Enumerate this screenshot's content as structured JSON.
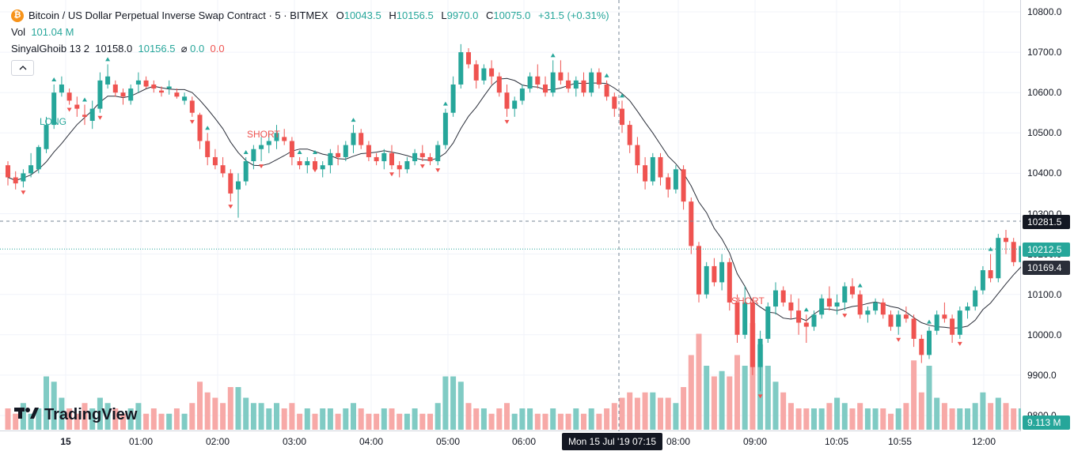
{
  "legend": {
    "icon_letter": "₿",
    "symbol": "Bitcoin / US Dollar Perpetual Inverse Swap Contract · 5 · BITMEX",
    "o_label": "O",
    "o_value": "10043.5",
    "h_label": "H",
    "h_value": "10156.5",
    "l_label": "L",
    "l_value": "9970.0",
    "c_label": "C",
    "c_value": "10075.0",
    "change": "+31.5 (+0.31%)",
    "vol_label": "Vol",
    "vol_value": "101.04 M",
    "indicator_name": "SinyalGhoib 13 2",
    "ind_v1": "10158.0",
    "ind_v2": "10156.5",
    "ind_v3_icon": "⌀",
    "ind_v3": "0.0",
    "ind_v4": "0.0",
    "collapse_icon": "chevron-up"
  },
  "signals": {
    "long": "LONG",
    "short1": "SHORT",
    "short2": "SHORT"
  },
  "price_axis": {
    "ticks": [
      "10800.0",
      "10700.0",
      "10600.0",
      "10500.0",
      "10400.0",
      "10300.0",
      "10200.0",
      "10100.0",
      "10000.0",
      "9900.0",
      "9800.0"
    ],
    "tag_dashed": "10281.5",
    "tag_last": "10212.5",
    "tag_ma": "10169.4",
    "tag_volume": "9.113 M"
  },
  "time_axis": {
    "ticks": [
      "15",
      "01:00",
      "02:00",
      "03:00",
      "04:00",
      "05:00",
      "06:00",
      "08:00",
      "09:00",
      "10:05",
      "10:55",
      "12:00"
    ],
    "crosshair_label": "Mon 15 Jul '19   07:15"
  },
  "branding": {
    "logo_text": "TradingView"
  },
  "colors": {
    "up": "#26a69a",
    "down": "#ef5350",
    "up_vol": "#80cbc4",
    "down_vol": "#f7a9a7",
    "ma": "#2a2e39",
    "bg": "#ffffff"
  },
  "chart_data": {
    "type": "candlestick",
    "title": "Bitcoin / US Dollar Perpetual Inverse Swap Contract · 5 · BITMEX",
    "ylim": [
      9790,
      10820
    ],
    "volume_unit": "M",
    "ohlc": [
      [
        10420,
        10430,
        10370,
        10390
      ],
      [
        10390,
        10405,
        10360,
        10375
      ],
      [
        10380,
        10410,
        10365,
        10400
      ],
      [
        10400,
        10450,
        10390,
        10420
      ],
      [
        10410,
        10470,
        10400,
        10465
      ],
      [
        10460,
        10540,
        10450,
        10520
      ],
      [
        10520,
        10620,
        10510,
        10600
      ],
      [
        10600,
        10640,
        10590,
        10620
      ],
      [
        10600,
        10610,
        10570,
        10580
      ],
      [
        10570,
        10590,
        10540,
        10560
      ],
      [
        10545,
        10570,
        10520,
        10540
      ],
      [
        10530,
        10580,
        10510,
        10560
      ],
      [
        10560,
        10650,
        10550,
        10630
      ],
      [
        10620,
        10670,
        10610,
        10640
      ],
      [
        10620,
        10630,
        10590,
        10600
      ],
      [
        10600,
        10610,
        10570,
        10590
      ],
      [
        10580,
        10620,
        10570,
        10610
      ],
      [
        10620,
        10650,
        10600,
        10630
      ],
      [
        10630,
        10640,
        10610,
        10615
      ],
      [
        10620,
        10630,
        10600,
        10610
      ],
      [
        10605,
        10615,
        10590,
        10600
      ],
      [
        10610,
        10630,
        10595,
        10615
      ],
      [
        10600,
        10610,
        10585,
        10590
      ],
      [
        10580,
        10600,
        10570,
        10590
      ],
      [
        10580,
        10590,
        10540,
        10550
      ],
      [
        10545,
        10550,
        10460,
        10480
      ],
      [
        10480,
        10500,
        10420,
        10440
      ],
      [
        10440,
        10460,
        10410,
        10420
      ],
      [
        10420,
        10440,
        10390,
        10400
      ],
      [
        10400,
        10410,
        10330,
        10350
      ],
      [
        10360,
        10400,
        10290,
        10380
      ],
      [
        10380,
        10440,
        10370,
        10430
      ],
      [
        10430,
        10470,
        10410,
        10460
      ],
      [
        10460,
        10490,
        10430,
        10470
      ],
      [
        10470,
        10500,
        10450,
        10480
      ],
      [
        10480,
        10520,
        10460,
        10500
      ],
      [
        10490,
        10510,
        10470,
        10480
      ],
      [
        10480,
        10490,
        10420,
        10440
      ],
      [
        10430,
        10440,
        10410,
        10420
      ],
      [
        10420,
        10440,
        10400,
        10430
      ],
      [
        10430,
        10440,
        10420,
        10410
      ],
      [
        10410,
        10430,
        10390,
        10420
      ],
      [
        10420,
        10460,
        10400,
        10450
      ],
      [
        10450,
        10470,
        10420,
        10440
      ],
      [
        10440,
        10480,
        10430,
        10470
      ],
      [
        10470,
        10520,
        10450,
        10500
      ],
      [
        10500,
        10510,
        10460,
        10470
      ],
      [
        10470,
        10480,
        10430,
        10440
      ],
      [
        10440,
        10450,
        10420,
        10430
      ],
      [
        10430,
        10460,
        10410,
        10450
      ],
      [
        10450,
        10470,
        10410,
        10420
      ],
      [
        10420,
        10430,
        10390,
        10410
      ],
      [
        10410,
        10440,
        10400,
        10430
      ],
      [
        10430,
        10460,
        10420,
        10450
      ],
      [
        10450,
        10470,
        10430,
        10440
      ],
      [
        10440,
        10450,
        10420,
        10430
      ],
      [
        10430,
        10480,
        10420,
        10470
      ],
      [
        10470,
        10560,
        10460,
        10550
      ],
      [
        10550,
        10640,
        10540,
        10620
      ],
      [
        10620,
        10720,
        10610,
        10700
      ],
      [
        10700,
        10710,
        10660,
        10670
      ],
      [
        10670,
        10680,
        10610,
        10630
      ],
      [
        10630,
        10670,
        10620,
        10660
      ],
      [
        10660,
        10680,
        10620,
        10640
      ],
      [
        10640,
        10650,
        10590,
        10600
      ],
      [
        10600,
        10620,
        10540,
        10560
      ],
      [
        10560,
        10590,
        10540,
        10580
      ],
      [
        10580,
        10620,
        10570,
        10610
      ],
      [
        10610,
        10650,
        10600,
        10640
      ],
      [
        10640,
        10670,
        10610,
        10620
      ],
      [
        10620,
        10640,
        10590,
        10600
      ],
      [
        10600,
        10680,
        10590,
        10650
      ],
      [
        10650,
        10680,
        10620,
        10630
      ],
      [
        10630,
        10650,
        10600,
        10610
      ],
      [
        10610,
        10640,
        10590,
        10630
      ],
      [
        10630,
        10650,
        10590,
        10600
      ],
      [
        10600,
        10660,
        10590,
        10650
      ],
      [
        10650,
        10660,
        10610,
        10620
      ],
      [
        10620,
        10630,
        10580,
        10590
      ],
      [
        10590,
        10600,
        10540,
        10560
      ],
      [
        10560,
        10580,
        10500,
        10520
      ],
      [
        10520,
        10530,
        10450,
        10470
      ],
      [
        10470,
        10490,
        10400,
        10420
      ],
      [
        10420,
        10440,
        10360,
        10380
      ],
      [
        10380,
        10450,
        10370,
        10440
      ],
      [
        10440,
        10450,
        10370,
        10390
      ],
      [
        10390,
        10400,
        10340,
        10360
      ],
      [
        10360,
        10420,
        10350,
        10410
      ],
      [
        10410,
        10420,
        10310,
        10330
      ],
      [
        10330,
        10340,
        10200,
        10220
      ],
      [
        10220,
        10230,
        10080,
        10100
      ],
      [
        10100,
        10180,
        10090,
        10170
      ],
      [
        10170,
        10190,
        10120,
        10130
      ],
      [
        10130,
        10200,
        10110,
        10180
      ],
      [
        10180,
        10190,
        10060,
        10080
      ],
      [
        10080,
        10100,
        9980,
        10000
      ],
      [
        10000,
        10120,
        9990,
        10080
      ],
      [
        10080,
        10090,
        9900,
        9920
      ],
      [
        9920,
        10010,
        9860,
        9990
      ],
      [
        9990,
        10080,
        9980,
        10070
      ],
      [
        10070,
        10130,
        10050,
        10110
      ],
      [
        10110,
        10120,
        10070,
        10080
      ],
      [
        10080,
        10100,
        10040,
        10060
      ],
      [
        10060,
        10090,
        10000,
        10030
      ],
      [
        10030,
        10050,
        9980,
        10020
      ],
      [
        10020,
        10060,
        10010,
        10050
      ],
      [
        10050,
        10100,
        10040,
        10090
      ],
      [
        10090,
        10120,
        10060,
        10070
      ],
      [
        10070,
        10100,
        10050,
        10080
      ],
      [
        10080,
        10130,
        10060,
        10120
      ],
      [
        10120,
        10140,
        10090,
        10100
      ],
      [
        10100,
        10110,
        10040,
        10050
      ],
      [
        10050,
        10070,
        10030,
        10060
      ],
      [
        10060,
        10090,
        10050,
        10080
      ],
      [
        10080,
        10090,
        10040,
        10050
      ],
      [
        10050,
        10060,
        10010,
        10020
      ],
      [
        10020,
        10060,
        10000,
        10050
      ],
      [
        10050,
        10070,
        10030,
        10040
      ],
      [
        10040,
        10050,
        9970,
        9990
      ],
      [
        9990,
        10000,
        9930,
        9950
      ],
      [
        9950,
        10020,
        9940,
        10010
      ],
      [
        10010,
        10060,
        10000,
        10050
      ],
      [
        10050,
        10080,
        10030,
        10040
      ],
      [
        10040,
        10050,
        9980,
        10000
      ],
      [
        10000,
        10070,
        9990,
        10060
      ],
      [
        10060,
        10080,
        10040,
        10070
      ],
      [
        10070,
        10120,
        10060,
        10110
      ],
      [
        10110,
        10170,
        10100,
        10160
      ],
      [
        10160,
        10200,
        10130,
        10140
      ],
      [
        10140,
        10250,
        10130,
        10240
      ],
      [
        10240,
        10260,
        10200,
        10230
      ],
      [
        10230,
        10240,
        10170,
        10180
      ],
      [
        10180,
        10230,
        10170,
        10220
      ],
      [
        10220,
        10230,
        10170,
        10180
      ],
      [
        10180,
        10240,
        10160,
        10230
      ]
    ],
    "volume": [
      4,
      3,
      5,
      3,
      4,
      10,
      9,
      6,
      4,
      3,
      5,
      4,
      6,
      5,
      4,
      3,
      4,
      5,
      3,
      4,
      3,
      3,
      4,
      3,
      5,
      9,
      7,
      6,
      5,
      8,
      8,
      6,
      5,
      5,
      4,
      5,
      4,
      5,
      3,
      4,
      3,
      4,
      4,
      3,
      4,
      5,
      4,
      3,
      3,
      4,
      4,
      3,
      3,
      4,
      3,
      3,
      5,
      10,
      10,
      9,
      5,
      4,
      4,
      3,
      4,
      5,
      3,
      4,
      4,
      3,
      3,
      4,
      3,
      3,
      4,
      3,
      4,
      3,
      4,
      5,
      6,
      7,
      6,
      7,
      7,
      6,
      6,
      5,
      8,
      14,
      18,
      12,
      10,
      11,
      10,
      14,
      12,
      20,
      16,
      12,
      9,
      7,
      5,
      4,
      4,
      4,
      4,
      5,
      6,
      5,
      4,
      5,
      4,
      4,
      4,
      3,
      4,
      5,
      13,
      7,
      12,
      6,
      5,
      4,
      4,
      4,
      5,
      7,
      5,
      6,
      5,
      4,
      4,
      4,
      3
    ]
  }
}
